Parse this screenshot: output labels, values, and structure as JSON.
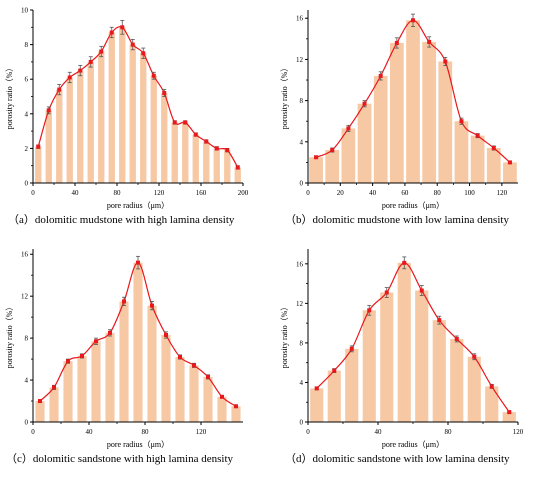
{
  "chart_data": [
    {
      "type": "bar",
      "caption": "（a）dolomitic mudstone with high lamina density",
      "xlabel": "pore radius（μm）",
      "ylabel": "porosity ratio（%）",
      "xlim": [
        0,
        200
      ],
      "ylim": [
        0,
        10
      ],
      "xticks": [
        0,
        40,
        80,
        120,
        160,
        200
      ],
      "yticks": [
        0,
        2,
        4,
        6,
        8,
        10
      ],
      "bar_width": 6,
      "x": [
        5,
        15,
        25,
        35,
        45,
        55,
        65,
        75,
        85,
        95,
        105,
        115,
        125,
        135,
        145,
        155,
        165,
        175,
        185,
        195
      ],
      "values": [
        2.1,
        4.2,
        5.4,
        6.1,
        6.5,
        7.0,
        7.6,
        8.7,
        9.0,
        8.0,
        7.5,
        6.2,
        5.2,
        3.5,
        3.5,
        2.8,
        2.4,
        2.0,
        1.9,
        0.9
      ],
      "errors": [
        0.1,
        0.2,
        0.3,
        0.3,
        0.3,
        0.3,
        0.3,
        0.3,
        0.4,
        0.3,
        0.3,
        0.2,
        0.2,
        0.1,
        0.1,
        0.1,
        0.1,
        0.1,
        0.1,
        0.1
      ],
      "bar_color": "#f7c8a4",
      "line_color": "#e8181c"
    },
    {
      "type": "bar",
      "caption": "（b）dolomitic mudstone with low lamina density",
      "xlabel": "pore radius（μm）",
      "ylabel": "porosity ratio（%）",
      "xlim": [
        0,
        130
      ],
      "ylim": [
        0,
        16.8
      ],
      "xticks": [
        0,
        20,
        40,
        60,
        80,
        100,
        120
      ],
      "yticks": [
        0,
        4,
        8,
        12,
        16
      ],
      "bar_width": 8.5,
      "x": [
        5,
        15,
        25,
        35,
        45,
        55,
        65,
        75,
        85,
        95,
        105,
        115,
        125
      ],
      "values": [
        2.5,
        3.2,
        5.3,
        7.7,
        10.4,
        13.6,
        15.8,
        13.7,
        11.8,
        6.0,
        4.6,
        3.4,
        2.0
      ],
      "errors": [
        0.1,
        0.2,
        0.3,
        0.3,
        0.4,
        0.5,
        0.6,
        0.5,
        0.4,
        0.3,
        0.2,
        0.2,
        0.1
      ],
      "bar_color": "#f7c8a4",
      "line_color": "#e8181c"
    },
    {
      "type": "bar",
      "caption": "（c）dolomitic sandstone with high lamina density",
      "xlabel": "pore radius（μm）",
      "ylabel": "porosity ratio（%）",
      "xlim": [
        0,
        150
      ],
      "ylim": [
        0,
        16.5
      ],
      "xticks": [
        0,
        40,
        80,
        120
      ],
      "yticks": [
        0,
        4,
        8,
        12,
        16
      ],
      "bar_width": 6.5,
      "x": [
        5,
        15,
        25,
        35,
        45,
        55,
        65,
        75,
        85,
        95,
        105,
        115,
        125,
        135,
        145
      ],
      "values": [
        2.0,
        3.3,
        5.8,
        6.3,
        7.7,
        8.5,
        11.5,
        15.2,
        11.1,
        8.3,
        6.2,
        5.4,
        4.3,
        2.4,
        1.5
      ],
      "errors": [
        0.1,
        0.2,
        0.2,
        0.2,
        0.3,
        0.3,
        0.4,
        0.6,
        0.4,
        0.3,
        0.2,
        0.2,
        0.2,
        0.1,
        0.1
      ],
      "bar_color": "#f7c8a4",
      "line_color": "#e8181c"
    },
    {
      "type": "bar",
      "caption": "（d）dolomitic sandstone with low lamina density",
      "xlabel": "pore radius（μm）",
      "ylabel": "porosity ratio（%）",
      "xlim": [
        0,
        120
      ],
      "ylim": [
        0,
        17.5
      ],
      "xticks": [
        0,
        40,
        80,
        120
      ],
      "yticks": [
        0,
        4,
        8,
        12,
        16
      ],
      "bar_width": 7.5,
      "x": [
        5,
        15,
        25,
        35,
        45,
        55,
        65,
        75,
        85,
        95,
        105,
        115
      ],
      "values": [
        3.4,
        5.2,
        7.4,
        11.3,
        13.1,
        16.1,
        13.3,
        10.3,
        8.4,
        6.6,
        3.6,
        1.0
      ],
      "errors": [
        0.1,
        0.2,
        0.3,
        0.5,
        0.5,
        0.6,
        0.5,
        0.4,
        0.3,
        0.3,
        0.2,
        0.1
      ],
      "bar_color": "#f7c8a4",
      "line_color": "#e8181c"
    }
  ]
}
